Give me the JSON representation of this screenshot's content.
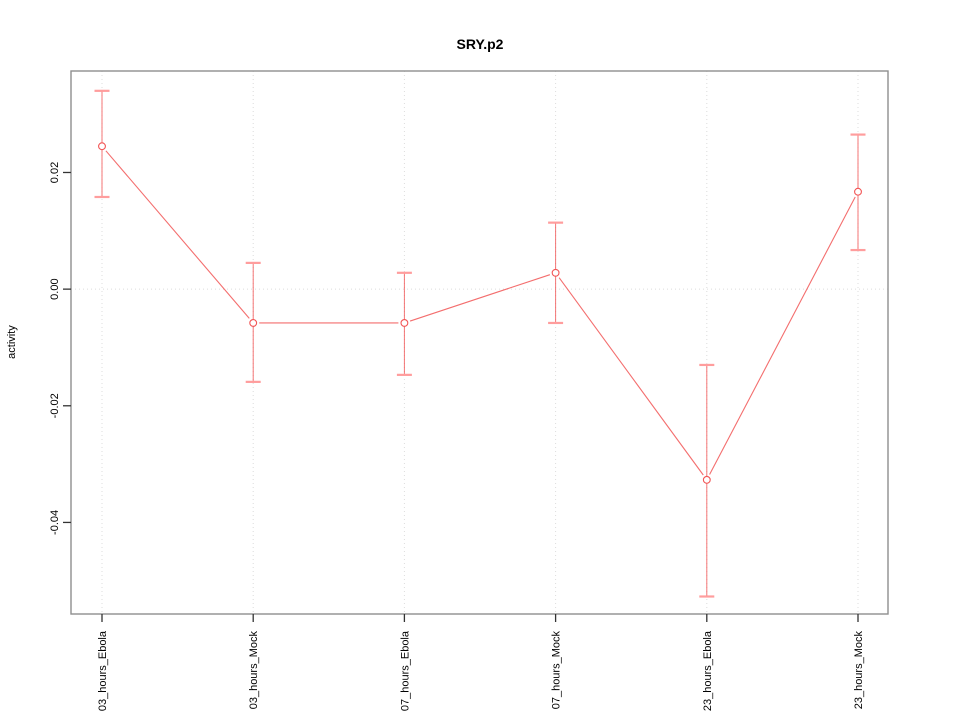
{
  "chart_data": {
    "type": "line",
    "title": "SRY.p2",
    "xlabel": "",
    "ylabel": "activity",
    "categories": [
      "03_hours_Ebola",
      "03_hours_Mock",
      "07_hours_Ebola",
      "07_hours_Mock",
      "23_hours_Ebola",
      "23_hours_Mock"
    ],
    "series": [
      {
        "name": "SRY.p2",
        "values": [
          0.0245,
          -0.0058,
          -0.0058,
          0.0028,
          -0.0327,
          0.0167
        ],
        "upper": [
          0.034,
          0.0045,
          0.0028,
          0.0114,
          -0.013,
          0.0265
        ],
        "lower": [
          0.0158,
          -0.0159,
          -0.0147,
          -0.0058,
          -0.0527,
          0.0067
        ]
      }
    ],
    "y_ticks": [
      {
        "label": "0.02",
        "value": 0.02
      },
      {
        "label": "0.00",
        "value": 0.0
      },
      {
        "label": "-0.02",
        "value": -0.02
      },
      {
        "label": "-0.04",
        "value": -0.04
      }
    ],
    "ylim": [
      -0.0557,
      0.0374
    ],
    "point_style": "open-circle",
    "error_bars": true,
    "grid": {
      "vertical_dotted_at_each_category": true,
      "horizontal_dotted_at_zero": true
    },
    "legend": "none",
    "colors": {
      "series": "#f25555",
      "error_cap": "#ff9d9d",
      "frame": "#8f8f8f",
      "gridline": "#dcdcdc",
      "tick": "#333333",
      "text": "#000000",
      "background": "#ffffff"
    }
  }
}
